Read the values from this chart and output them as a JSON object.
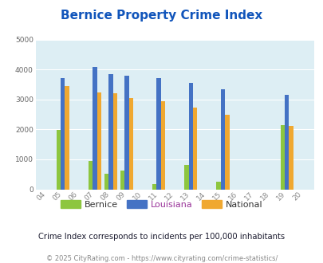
{
  "title": "Bernice Property Crime Index",
  "title_color": "#1155bb",
  "years_all": [
    2004,
    2005,
    2006,
    2007,
    2008,
    2009,
    2010,
    2011,
    2012,
    2013,
    2014,
    2015,
    2016,
    2017,
    2018,
    2019,
    2020
  ],
  "xtick_labels": [
    "04",
    "05",
    "06",
    "07",
    "08",
    "09",
    "10",
    "11",
    "12",
    "13",
    "14",
    "15",
    "16",
    "17",
    "18",
    "19",
    "20"
  ],
  "bernice": [
    0,
    1980,
    0,
    950,
    520,
    640,
    0,
    180,
    0,
    820,
    0,
    260,
    0,
    0,
    0,
    2130,
    0
  ],
  "louisiana": [
    0,
    3700,
    0,
    4080,
    3840,
    3800,
    0,
    3700,
    0,
    3560,
    0,
    3340,
    0,
    0,
    0,
    3140,
    0
  ],
  "national": [
    0,
    3440,
    0,
    3240,
    3200,
    3040,
    0,
    2930,
    0,
    2720,
    0,
    2480,
    0,
    0,
    0,
    2120,
    0
  ],
  "bernice_color": "#8dc63f",
  "louisiana_color": "#4472c4",
  "national_color": "#f0a830",
  "bg_color": "#ddeef4",
  "ylim": [
    0,
    5000
  ],
  "yticks": [
    0,
    1000,
    2000,
    3000,
    4000,
    5000
  ],
  "bar_width": 0.27,
  "subtitle": "Crime Index corresponds to incidents per 100,000 inhabitants",
  "footer": "© 2025 CityRating.com - https://www.cityrating.com/crime-statistics/",
  "legend_labels": [
    "Bernice",
    "Louisiana",
    "National"
  ],
  "louisiana_legend_color": "#993399"
}
